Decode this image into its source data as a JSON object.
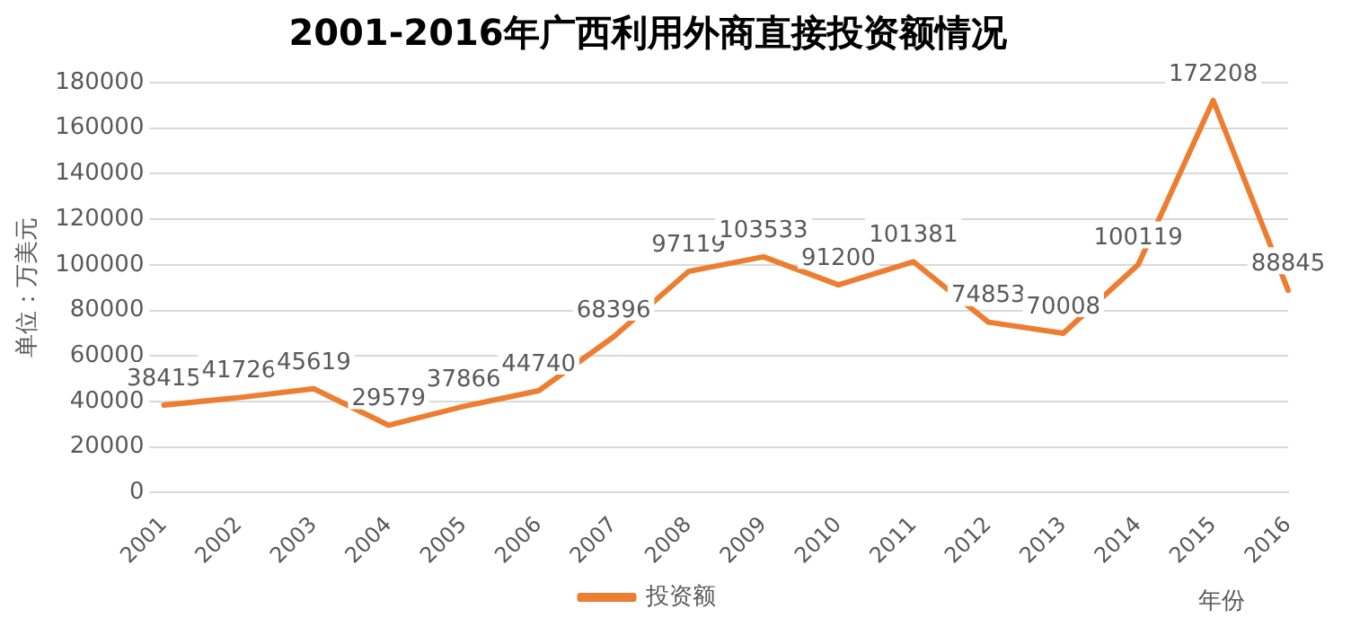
{
  "chart_data": {
    "type": "line",
    "title": "2001-2016年广西利用外商直接投资额情况",
    "ylabel": "单位：万美元",
    "xlabel": "年份",
    "categories": [
      "2001",
      "2002",
      "2003",
      "2004",
      "2005",
      "2006",
      "2007",
      "2008",
      "2009",
      "2010",
      "2011",
      "2012",
      "2013",
      "2014",
      "2015",
      "2016"
    ],
    "series": [
      {
        "name": "投资额",
        "color": "#ed7d31",
        "values": [
          38415,
          41726,
          45619,
          29579,
          37866,
          44740,
          68396,
          97119,
          103533,
          91200,
          101381,
          74853,
          70008,
          100119,
          172208,
          88845
        ]
      }
    ],
    "ylim": [
      0,
      180000
    ],
    "yticks": [
      0,
      20000,
      40000,
      60000,
      80000,
      100000,
      120000,
      140000,
      160000,
      180000
    ],
    "grid": "y",
    "legend": "bottom",
    "data_labels": true,
    "marker": "none",
    "line_style": "solid"
  }
}
